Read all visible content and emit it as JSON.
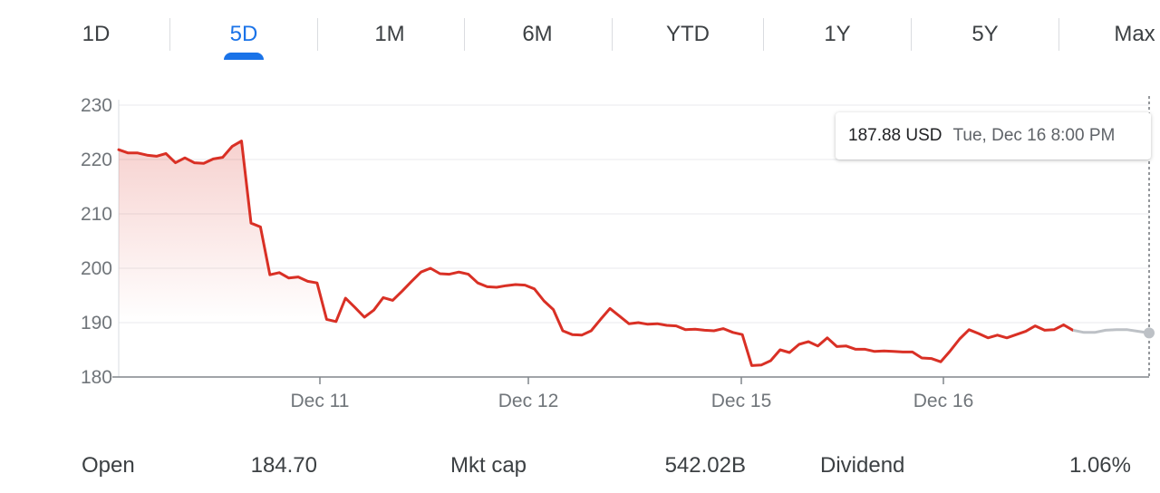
{
  "tabs": [
    "1D",
    "5D",
    "1M",
    "6M",
    "YTD",
    "1Y",
    "5Y",
    "Max"
  ],
  "active_tab": "5D",
  "tooltip": {
    "price": "187.88 USD",
    "time": "Tue, Dec 16 8:00 PM"
  },
  "stats": [
    {
      "label": "Open",
      "value": "184.70"
    },
    {
      "label": "Mkt cap",
      "value": "542.02B"
    },
    {
      "label": "Dividend",
      "value": "1.06%"
    }
  ],
  "colors": {
    "line": "#d93025",
    "extended": "#bdc1c6",
    "accent": "#1a73e8"
  },
  "chart_data": {
    "type": "line",
    "y_ticks": [
      180,
      190,
      200,
      210,
      220,
      230
    ],
    "ylim": [
      180,
      230
    ],
    "x_ticks": [
      "Dec 11",
      "Dec 12",
      "Dec 15",
      "Dec 16"
    ],
    "grid": true,
    "series": [
      {
        "values": [
          221.8,
          221.2,
          221.2,
          220.8,
          220.6,
          221.1,
          219.4,
          220.3,
          219.4,
          219.3,
          220.1,
          220.4,
          222.4,
          223.4,
          208.3,
          207.6,
          198.8,
          199.2,
          198.2,
          198.4,
          197.6,
          197.3,
          190.6,
          190.2,
          194.5,
          192.8,
          191.0,
          192.3,
          194.6,
          194.1,
          195.8,
          197.6,
          199.3,
          200.0,
          199.0,
          198.9,
          199.3,
          198.9,
          197.3,
          196.6,
          196.5,
          196.8,
          197.0,
          196.9,
          196.2,
          194.0,
          192.4,
          188.5,
          187.8,
          187.7,
          188.5,
          190.6,
          192.6,
          191.2,
          189.8,
          190.0,
          189.7,
          189.8,
          189.5,
          189.4,
          188.7,
          188.8,
          188.6,
          188.5,
          188.9,
          188.2,
          187.8,
          182.1,
          182.2,
          183.0,
          185.0,
          184.5,
          186.0,
          186.5,
          185.7,
          187.2,
          185.6,
          185.7,
          185.1,
          185.1,
          184.7,
          184.8,
          184.7,
          184.6,
          184.6,
          183.5,
          183.4,
          182.8,
          184.8,
          187.0,
          188.7,
          188.0,
          187.2,
          187.7,
          187.2,
          187.8,
          188.4,
          189.4,
          188.6,
          188.7,
          189.6,
          188.6
        ]
      },
      {
        "values": [
          188.6,
          188.2,
          188.2,
          188.6,
          188.7,
          188.7,
          188.4,
          188.1
        ]
      }
    ]
  }
}
